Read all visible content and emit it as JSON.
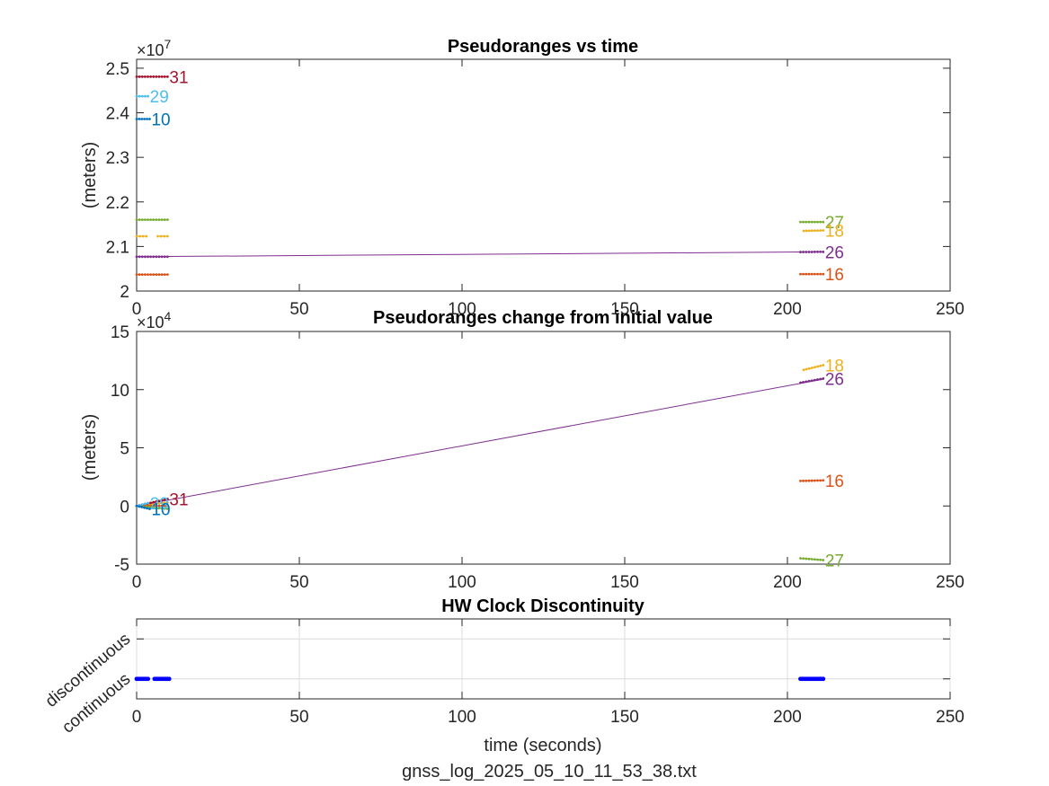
{
  "footer": "gnss_log_2025_05_10_11_53_38.txt",
  "chart_data": [
    {
      "type": "line",
      "title": "Pseudoranges vs time",
      "xlabel": "",
      "ylabel": "(meters)",
      "y_exponent_base": "×10",
      "y_exponent_power": "7",
      "xlim": [
        0,
        250
      ],
      "ylim": [
        20000000,
        25200000
      ],
      "xticks": [
        0,
        50,
        100,
        150,
        200,
        250
      ],
      "yticks": [
        20000000,
        21000000,
        22000000,
        23000000,
        24000000,
        25000000
      ],
      "ytick_labels": [
        "2",
        "2.1",
        "2.2",
        "2.3",
        "2.4",
        "2.5"
      ],
      "grid": false,
      "series": [
        {
          "name": "31",
          "color": "#a2142f",
          "segments": [
            {
              "x0": 0,
              "x1": 9.5,
              "y0": 24810000,
              "y1": 24810000
            }
          ]
        },
        {
          "name": "29",
          "color": "#4dbeee",
          "segments": [
            {
              "x0": 0,
              "x1": 3.5,
              "y0": 24370000,
              "y1": 24370000
            }
          ]
        },
        {
          "name": "10",
          "color": "#0072bd",
          "segments": [
            {
              "x0": 0,
              "x1": 4,
              "y0": 23860000,
              "y1": 23860000
            }
          ]
        },
        {
          "name": "27",
          "color": "#77ac30",
          "segments": [
            {
              "x0": 0,
              "x1": 9.5,
              "y0": 21600000,
              "y1": 21600000
            },
            {
              "x0": 204,
              "x1": 211,
              "y0": 21550000,
              "y1": 21550000
            }
          ]
        },
        {
          "name": "18",
          "color": "#edb120",
          "segments": [
            {
              "x0": 0,
              "x1": 3,
              "y0": 21230000,
              "y1": 21230000
            },
            {
              "x0": 6.5,
              "x1": 9.5,
              "y0": 21230000,
              "y1": 21230000
            },
            {
              "x0": 205,
              "x1": 211,
              "y0": 21350000,
              "y1": 21360000
            }
          ]
        },
        {
          "name": "26",
          "color": "#7e2f8e",
          "segments": [
            {
              "x0": 0,
              "x1": 211,
              "y0": 20770000,
              "y1": 20880000,
              "trend": true
            },
            {
              "x0": 0,
              "x1": 9.5,
              "y0": 20770000,
              "y1": 20770000
            },
            {
              "x0": 204,
              "x1": 211,
              "y0": 20875000,
              "y1": 20880000
            }
          ]
        },
        {
          "name": "16",
          "color": "#d95319",
          "segments": [
            {
              "x0": 0,
              "x1": 9.5,
              "y0": 20370000,
              "y1": 20370000
            },
            {
              "x0": 204,
              "x1": 211,
              "y0": 20380000,
              "y1": 20380000
            }
          ]
        }
      ]
    },
    {
      "type": "line",
      "title": "Pseudoranges change from initial value",
      "xlabel": "",
      "ylabel": "(meters)",
      "y_exponent_base": "×10",
      "y_exponent_power": "4",
      "xlim": [
        0,
        250
      ],
      "ylim": [
        -50000,
        150000
      ],
      "xticks": [
        0,
        50,
        100,
        150,
        200,
        250
      ],
      "yticks": [
        -50000,
        0,
        50000,
        100000,
        150000
      ],
      "ytick_labels": [
        "-5",
        "0",
        "5",
        "10",
        "15"
      ],
      "grid": false,
      "series": [
        {
          "name": "18",
          "color": "#edb120",
          "segments": [
            {
              "x0": 0,
              "x1": 9.5,
              "y0": 0,
              "y1": 3000
            },
            {
              "x0": 205,
              "x1": 211,
              "y0": 117000,
              "y1": 121000
            }
          ]
        },
        {
          "name": "26",
          "color": "#7e2f8e",
          "segments": [
            {
              "x0": 0,
              "x1": 211,
              "y0": 0,
              "y1": 109000,
              "trend": true
            },
            {
              "x0": 204,
              "x1": 211,
              "y0": 106000,
              "y1": 109500
            }
          ]
        },
        {
          "name": "16",
          "color": "#d95319",
          "segments": [
            {
              "x0": 0,
              "x1": 9.5,
              "y0": 0,
              "y1": 100
            },
            {
              "x0": 204,
              "x1": 211,
              "y0": 21500,
              "y1": 22000
            }
          ]
        },
        {
          "name": "27",
          "color": "#77ac30",
          "segments": [
            {
              "x0": 0,
              "x1": 9.5,
              "y0": 0,
              "y1": -2500
            },
            {
              "x0": 204,
              "x1": 211,
              "y0": -45000,
              "y1": -46500
            }
          ]
        },
        {
          "name": "31",
          "color": "#a2142f",
          "segments": [
            {
              "x0": 0,
              "x1": 9.5,
              "y0": 0,
              "y1": 6000
            }
          ]
        },
        {
          "name": "29",
          "color": "#4dbeee",
          "segments": [
            {
              "x0": 0,
              "x1": 3.5,
              "y0": 0,
              "y1": 2500
            }
          ]
        },
        {
          "name": "10",
          "color": "#0072bd",
          "segments": [
            {
              "x0": 0,
              "x1": 4,
              "y0": 0,
              "y1": -2500
            }
          ]
        }
      ]
    },
    {
      "type": "scatter",
      "title": "HW Clock Discontinuity",
      "xlabel": "time (seconds)",
      "ylabel": "",
      "xlim": [
        0,
        250
      ],
      "ylim": [
        -0.5,
        1.5
      ],
      "xticks": [
        0,
        50,
        100,
        150,
        200,
        250
      ],
      "yticks": [
        0,
        1
      ],
      "ytick_labels": [
        "continuous",
        "discontinuous"
      ],
      "grid": true,
      "color": "#0000ff",
      "series": [
        {
          "x": [
            0,
            0.5,
            1,
            1.5,
            2,
            2.5,
            3,
            3.5,
            5.5,
            6,
            6.5,
            7,
            7.5,
            8,
            8.5,
            9,
            9.5,
            10,
            204,
            204.5,
            205,
            205.5,
            206,
            206.5,
            207,
            207.5,
            208,
            208.5,
            209,
            209.5,
            210,
            210.5,
            211
          ],
          "y": 0
        }
      ]
    }
  ]
}
